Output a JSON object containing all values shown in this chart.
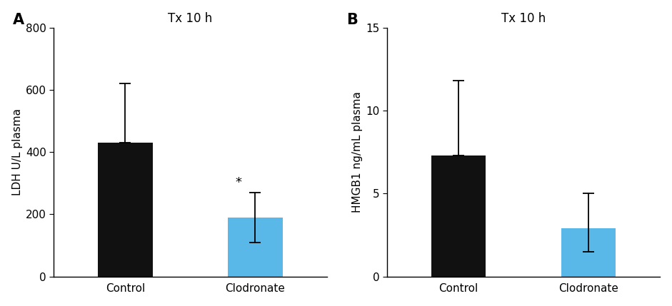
{
  "panel_A": {
    "title": "Tx 10 h",
    "ylabel": "LDH U/L plasma",
    "categories": [
      "Control",
      "Clodronate"
    ],
    "values": [
      430,
      190
    ],
    "errors_upper": [
      190,
      80
    ],
    "errors_lower": [
      0,
      80
    ],
    "bar_colors": [
      "#111111",
      "#5ab8e8"
    ],
    "ylim": [
      0,
      800
    ],
    "yticks": [
      0,
      200,
      400,
      600,
      800
    ],
    "significance": [
      "",
      "*"
    ],
    "panel_label": "A"
  },
  "panel_B": {
    "title": "Tx 10 h",
    "ylabel": "HMGB1 ng/mL plasma",
    "categories": [
      "Control",
      "Clodronate"
    ],
    "values": [
      7.3,
      2.9
    ],
    "errors_upper": [
      4.5,
      2.1
    ],
    "errors_lower": [
      0,
      1.4
    ],
    "bar_colors": [
      "#111111",
      "#5ab8e8"
    ],
    "ylim": [
      0,
      15
    ],
    "yticks": [
      0,
      5,
      10,
      15
    ],
    "significance": [
      "",
      ""
    ],
    "panel_label": "B"
  },
  "background_color": "#ffffff",
  "bar_width": 0.42,
  "capsize": 6,
  "fontsize_title": 12,
  "fontsize_label": 11,
  "fontsize_tick": 11,
  "fontsize_panel": 15,
  "fontsize_sig": 13
}
